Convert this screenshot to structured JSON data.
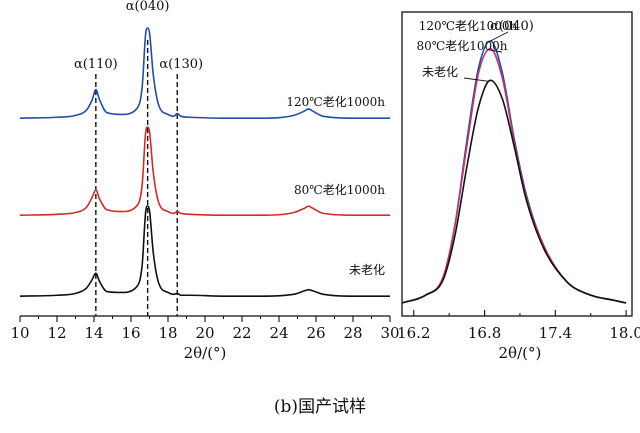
{
  "caption": "(b)国产试样",
  "chart_data": [
    {
      "type": "line",
      "title": "",
      "xlabel": "2θ/(°)",
      "ylabel": "",
      "xlim": [
        10,
        30
      ],
      "xticks": [
        10,
        12,
        14,
        16,
        18,
        20,
        22,
        24,
        26,
        28,
        30
      ],
      "peak_labels": [
        {
          "text": "α(110)",
          "x": 14.1
        },
        {
          "text": "α(040)",
          "x": 16.9
        },
        {
          "text": "α(130)",
          "x": 18.5
        }
      ],
      "series": [
        {
          "name": "120℃老化1000h",
          "color": "#1f4fa8",
          "x": [
            10,
            12,
            13,
            13.6,
            13.9,
            14.1,
            14.3,
            14.7,
            15.5,
            16.3,
            16.6,
            16.8,
            16.9,
            17.0,
            17.2,
            17.5,
            18.0,
            18.3,
            18.5,
            18.7,
            19.2,
            21,
            23,
            24.8,
            25.4,
            25.6,
            25.8,
            26.4,
            28,
            30
          ],
          "values": [
            0.02,
            0.03,
            0.05,
            0.11,
            0.22,
            0.33,
            0.22,
            0.08,
            0.06,
            0.12,
            0.35,
            0.95,
            1.0,
            0.95,
            0.5,
            0.16,
            0.06,
            0.04,
            0.07,
            0.04,
            0.03,
            0.02,
            0.02,
            0.05,
            0.1,
            0.12,
            0.1,
            0.04,
            0.02,
            0.02
          ]
        },
        {
          "name": "80℃老化1000h",
          "color": "#d42a2a",
          "x": [
            10,
            12,
            13,
            13.6,
            13.9,
            14.1,
            14.3,
            14.7,
            15.5,
            16.3,
            16.6,
            16.8,
            16.9,
            17.0,
            17.2,
            17.5,
            18.0,
            18.3,
            18.5,
            18.7,
            19.2,
            21,
            23,
            24.8,
            25.4,
            25.6,
            25.8,
            26.4,
            28,
            30
          ],
          "values": [
            0.02,
            0.03,
            0.05,
            0.11,
            0.22,
            0.3,
            0.2,
            0.08,
            0.06,
            0.12,
            0.35,
            0.95,
            1.0,
            0.95,
            0.5,
            0.16,
            0.06,
            0.04,
            0.06,
            0.04,
            0.03,
            0.02,
            0.02,
            0.05,
            0.1,
            0.12,
            0.1,
            0.04,
            0.02,
            0.02
          ]
        },
        {
          "name": "未老化",
          "color": "#111111",
          "x": [
            10,
            12,
            13,
            13.6,
            13.9,
            14.1,
            14.3,
            14.7,
            15.5,
            16.3,
            16.6,
            16.8,
            16.9,
            17.0,
            17.2,
            17.5,
            18.0,
            18.3,
            18.5,
            18.7,
            19.2,
            21,
            23,
            24.8,
            25.4,
            25.6,
            25.8,
            26.4,
            28,
            30
          ],
          "values": [
            0.02,
            0.03,
            0.05,
            0.11,
            0.2,
            0.27,
            0.18,
            0.07,
            0.06,
            0.12,
            0.35,
            0.95,
            1.0,
            0.95,
            0.5,
            0.16,
            0.06,
            0.04,
            0.05,
            0.03,
            0.03,
            0.02,
            0.02,
            0.04,
            0.08,
            0.09,
            0.08,
            0.04,
            0.02,
            0.02
          ]
        }
      ]
    },
    {
      "type": "line",
      "title": "",
      "xlabel": "2θ/(°)",
      "ylabel": "",
      "xlim": [
        16.1,
        18.05
      ],
      "xticks": [
        16.2,
        16.8,
        17.4,
        18.0
      ],
      "xtick_labels": [
        "16.2",
        "16.8",
        "17.4",
        "18.0"
      ],
      "peak_label": "α(040)",
      "series": [
        {
          "name": "120℃老化1000h",
          "color": "#1f4fa8",
          "x": [
            16.1,
            16.3,
            16.45,
            16.55,
            16.65,
            16.75,
            16.85,
            16.95,
            17.05,
            17.15,
            17.3,
            17.5,
            17.7,
            17.9,
            18.0
          ],
          "values": [
            0.0,
            0.03,
            0.1,
            0.3,
            0.62,
            0.9,
            1.0,
            0.88,
            0.63,
            0.42,
            0.22,
            0.08,
            0.03,
            0.01,
            0.0
          ]
        },
        {
          "name": "80℃老化1000h",
          "color": "#c0336b",
          "x": [
            16.1,
            16.3,
            16.45,
            16.55,
            16.65,
            16.75,
            16.85,
            16.95,
            17.05,
            17.15,
            17.3,
            17.5,
            17.7,
            17.9,
            18.0
          ],
          "values": [
            0.0,
            0.03,
            0.1,
            0.3,
            0.6,
            0.88,
            0.97,
            0.86,
            0.62,
            0.41,
            0.22,
            0.08,
            0.03,
            0.01,
            0.0
          ]
        },
        {
          "name": "未老化",
          "color": "#111111",
          "x": [
            16.1,
            16.3,
            16.45,
            16.55,
            16.65,
            16.75,
            16.85,
            16.95,
            17.05,
            17.15,
            17.3,
            17.5,
            17.7,
            17.9,
            18.0
          ],
          "values": [
            0.0,
            0.03,
            0.09,
            0.26,
            0.52,
            0.75,
            0.85,
            0.78,
            0.6,
            0.4,
            0.21,
            0.08,
            0.03,
            0.01,
            0.0
          ]
        }
      ]
    }
  ]
}
